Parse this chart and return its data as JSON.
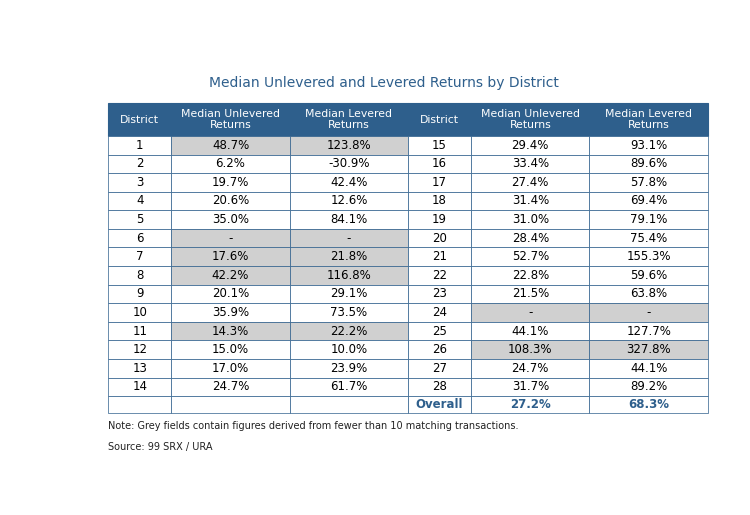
{
  "title": "Median Unlevered and Levered Returns by District",
  "header_bg": "#2e5f8c",
  "header_fg": "#ffffff",
  "row_bg_white": "#ffffff",
  "row_bg_grey": "#d0d0d0",
  "overall_fg": "#2e5f8c",
  "border_color": "#2e5f8c",
  "note": "Note: Grey fields contain figures derived from fewer than 10 matching transactions.",
  "source": "Source: 99 SRX / URA",
  "left_table": {
    "headers": [
      "District",
      "Median Unlevered\nReturns",
      "Median Levered\nReturns"
    ],
    "rows": [
      {
        "district": "1",
        "unlevered": "48.7%",
        "levered": "123.8%",
        "grey": [
          true,
          true
        ]
      },
      {
        "district": "2",
        "unlevered": "6.2%",
        "levered": "-30.9%",
        "grey": [
          false,
          false
        ]
      },
      {
        "district": "3",
        "unlevered": "19.7%",
        "levered": "42.4%",
        "grey": [
          false,
          false
        ]
      },
      {
        "district": "4",
        "unlevered": "20.6%",
        "levered": "12.6%",
        "grey": [
          false,
          false
        ]
      },
      {
        "district": "5",
        "unlevered": "35.0%",
        "levered": "84.1%",
        "grey": [
          false,
          false
        ]
      },
      {
        "district": "6",
        "unlevered": "-",
        "levered": "-",
        "grey": [
          true,
          true
        ]
      },
      {
        "district": "7",
        "unlevered": "17.6%",
        "levered": "21.8%",
        "grey": [
          true,
          true
        ]
      },
      {
        "district": "8",
        "unlevered": "42.2%",
        "levered": "116.8%",
        "grey": [
          true,
          true
        ]
      },
      {
        "district": "9",
        "unlevered": "20.1%",
        "levered": "29.1%",
        "grey": [
          false,
          false
        ]
      },
      {
        "district": "10",
        "unlevered": "35.9%",
        "levered": "73.5%",
        "grey": [
          false,
          false
        ]
      },
      {
        "district": "11",
        "unlevered": "14.3%",
        "levered": "22.2%",
        "grey": [
          true,
          true
        ]
      },
      {
        "district": "12",
        "unlevered": "15.0%",
        "levered": "10.0%",
        "grey": [
          false,
          false
        ]
      },
      {
        "district": "13",
        "unlevered": "17.0%",
        "levered": "23.9%",
        "grey": [
          false,
          false
        ]
      },
      {
        "district": "14",
        "unlevered": "24.7%",
        "levered": "61.7%",
        "grey": [
          false,
          false
        ]
      }
    ]
  },
  "right_table": {
    "headers": [
      "District",
      "Median Unlevered\nReturns",
      "Median Levered\nReturns"
    ],
    "rows": [
      {
        "district": "15",
        "unlevered": "29.4%",
        "levered": "93.1%",
        "grey": [
          false,
          false
        ]
      },
      {
        "district": "16",
        "unlevered": "33.4%",
        "levered": "89.6%",
        "grey": [
          false,
          false
        ]
      },
      {
        "district": "17",
        "unlevered": "27.4%",
        "levered": "57.8%",
        "grey": [
          false,
          false
        ]
      },
      {
        "district": "18",
        "unlevered": "31.4%",
        "levered": "69.4%",
        "grey": [
          false,
          false
        ]
      },
      {
        "district": "19",
        "unlevered": "31.0%",
        "levered": "79.1%",
        "grey": [
          false,
          false
        ]
      },
      {
        "district": "20",
        "unlevered": "28.4%",
        "levered": "75.4%",
        "grey": [
          false,
          false
        ]
      },
      {
        "district": "21",
        "unlevered": "52.7%",
        "levered": "155.3%",
        "grey": [
          false,
          false
        ]
      },
      {
        "district": "22",
        "unlevered": "22.8%",
        "levered": "59.6%",
        "grey": [
          false,
          false
        ]
      },
      {
        "district": "23",
        "unlevered": "21.5%",
        "levered": "63.8%",
        "grey": [
          false,
          false
        ]
      },
      {
        "district": "24",
        "unlevered": "-",
        "levered": "-",
        "grey": [
          true,
          true
        ]
      },
      {
        "district": "25",
        "unlevered": "44.1%",
        "levered": "127.7%",
        "grey": [
          false,
          false
        ]
      },
      {
        "district": "26",
        "unlevered": "108.3%",
        "levered": "327.8%",
        "grey": [
          true,
          true
        ]
      },
      {
        "district": "27",
        "unlevered": "24.7%",
        "levered": "44.1%",
        "grey": [
          false,
          false
        ]
      },
      {
        "district": "28",
        "unlevered": "31.7%",
        "levered": "89.2%",
        "grey": [
          false,
          false
        ]
      }
    ],
    "overall": {
      "district": "Overall",
      "unlevered": "27.2%",
      "levered": "68.3%"
    }
  }
}
